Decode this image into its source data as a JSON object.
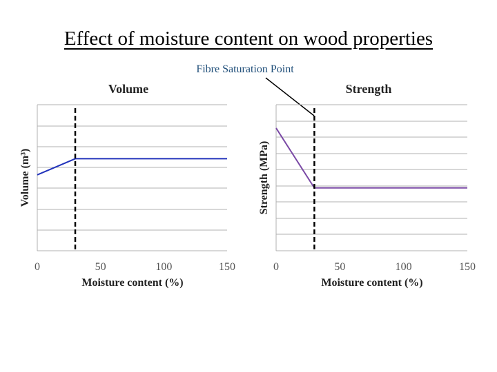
{
  "slide": {
    "title": "Effect of moisture content on wood properties",
    "annotation": "Fibre Saturation Point"
  },
  "colors": {
    "volume_line": "#2233bb",
    "strength_line": "#7b4aa6",
    "grid": "#b0b0b0",
    "marker_line": "#000000",
    "annotation_text": "#1f4e79"
  },
  "chart_data": [
    {
      "type": "line",
      "title": "Volume",
      "xlabel": "Moisture content (%)",
      "ylabel": "Volume (m³)",
      "xlim": [
        0,
        150
      ],
      "x_ticks": [
        0,
        50,
        100,
        150
      ],
      "x_tick_labels": [
        "0",
        "50",
        "100",
        "150"
      ],
      "y_ticks_shown": false,
      "grid": true,
      "marker_x": 30,
      "series": [
        {
          "x": [
            0,
            30,
            150
          ],
          "y": [
            0.52,
            0.63,
            0.63
          ]
        }
      ]
    },
    {
      "type": "line",
      "title": "Strength",
      "xlabel": "Moisture content (%)",
      "ylabel": "Strength (MPa)",
      "xlim": [
        0,
        150
      ],
      "x_ticks": [
        0,
        50,
        100,
        150
      ],
      "x_tick_labels": [
        "0",
        "50",
        "100",
        "150"
      ],
      "y_ticks_shown": false,
      "grid": true,
      "marker_x": 30,
      "series": [
        {
          "x": [
            0,
            30,
            150
          ],
          "y": [
            0.84,
            0.43,
            0.43
          ]
        }
      ]
    }
  ]
}
